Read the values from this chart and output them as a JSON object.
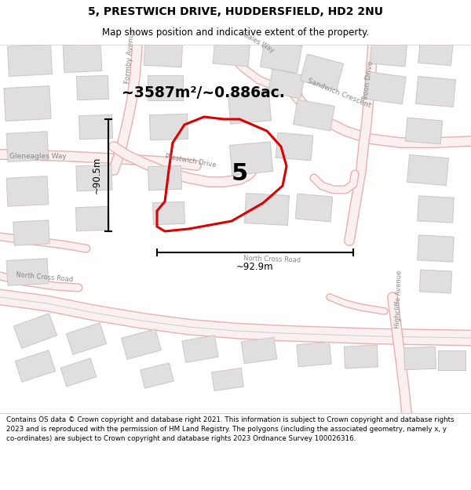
{
  "title_line1": "5, PRESTWICH DRIVE, HUDDERSFIELD, HD2 2NU",
  "title_line2": "Map shows position and indicative extent of the property.",
  "area_label": "~3587m²/~0.886ac.",
  "property_number": "5",
  "dim_vertical": "~90.5m",
  "dim_horizontal": "~92.9m",
  "footer_text": "Contains OS data © Crown copyright and database right 2021. This information is subject to Crown copyright and database rights 2023 and is reproduced with the permission of HM Land Registry. The polygons (including the associated geometry, namely x, y co-ordinates) are subject to Crown copyright and database rights 2023 Ordnance Survey 100026316.",
  "map_bg": "#f7f4f4",
  "title_bg": "#ffffff",
  "footer_bg": "#ffffff",
  "polygon_color": "#dd0000",
  "road_fill": "#f5e8e8",
  "road_outline": "#e8a0a0",
  "road_center": "#d4d4d4",
  "building_fill": "#e0dede",
  "building_edge": "#c8c8c8"
}
